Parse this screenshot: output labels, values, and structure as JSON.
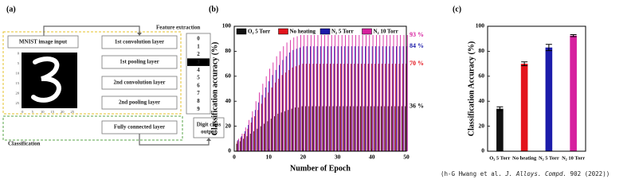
{
  "diagram": {
    "label": "(a)",
    "input": "MNIST image input",
    "feature_extraction": "Feature extraction",
    "layers": [
      "1st convolution layer",
      "1st pooling layer",
      "2nd convolution layer",
      "2nd pooling layer"
    ],
    "fully_connected": "Fully connected layer",
    "classification": "Classification",
    "output": [
      "Digit class",
      "output"
    ],
    "digits": [
      "0",
      "1",
      "2",
      "3",
      "4",
      "5",
      "6",
      "7",
      "8",
      "9"
    ],
    "image_ticks": [
      0,
      5,
      10,
      15,
      20,
      25
    ]
  },
  "chart_data": [
    {
      "type": "bar",
      "label": "(b)",
      "ylabel": "Classification accuracy (%)",
      "xlabel": "Number of Epoch",
      "legend": "top",
      "xlim": [
        0,
        50
      ],
      "xticks": [
        0,
        10,
        20,
        30,
        40,
        50
      ],
      "ylim": [
        0,
        100
      ],
      "yticks": [
        0,
        20,
        40,
        60,
        80,
        100
      ],
      "x": [
        1,
        2,
        3,
        4,
        5,
        6,
        7,
        8,
        9,
        10,
        11,
        12,
        13,
        14,
        15,
        16,
        17,
        18,
        19,
        20,
        21,
        22,
        23,
        24,
        25,
        26,
        27,
        28,
        29,
        30,
        31,
        32,
        33,
        34,
        35,
        36,
        37,
        38,
        39,
        40,
        41,
        42,
        43,
        44,
        45,
        46,
        47,
        48,
        49,
        50
      ],
      "series": [
        {
          "name": "O₂ 5 Torr",
          "color": "#111111",
          "end_label": "36 %",
          "values": [
            6,
            8,
            10,
            12,
            14,
            16,
            18,
            20,
            22,
            24,
            26,
            28,
            30,
            31,
            32,
            33,
            34,
            35,
            35,
            36,
            36,
            36,
            36,
            36,
            36,
            36,
            36,
            36,
            36,
            36,
            36,
            36,
            36,
            36,
            36,
            36,
            36,
            36,
            36,
            36,
            36,
            36,
            36,
            36,
            36,
            36,
            36,
            36,
            36,
            36
          ]
        },
        {
          "name": "No heating",
          "color": "#e3141c",
          "end_label": "70 %",
          "values": [
            8,
            11,
            14,
            18,
            23,
            28,
            33,
            38,
            43,
            47,
            51,
            55,
            58,
            61,
            63,
            65,
            67,
            68,
            69,
            70,
            70,
            70,
            70,
            70,
            70,
            70,
            70,
            70,
            70,
            70,
            70,
            70,
            70,
            70,
            70,
            70,
            70,
            70,
            70,
            70,
            70,
            70,
            70,
            70,
            70,
            70,
            70,
            70,
            70,
            70
          ]
        },
        {
          "name": "N₂ 5 Torr",
          "color": "#1c1caa",
          "end_label": "84 %",
          "values": [
            9,
            12,
            16,
            21,
            27,
            33,
            39,
            45,
            51,
            56,
            61,
            65,
            69,
            73,
            76,
            79,
            81,
            82,
            83,
            84,
            84,
            84,
            84,
            84,
            84,
            84,
            84,
            84,
            84,
            84,
            84,
            84,
            84,
            84,
            84,
            84,
            84,
            84,
            84,
            84,
            84,
            84,
            84,
            84,
            84,
            84,
            84,
            84,
            84,
            84
          ]
        },
        {
          "name": "N₂ 10 Torr",
          "color": "#d6209e",
          "end_label": "93 %",
          "values": [
            10,
            14,
            19,
            25,
            32,
            40,
            47,
            54,
            60,
            66,
            71,
            76,
            80,
            84,
            87,
            89,
            91,
            92,
            93,
            93,
            93,
            93,
            93,
            93,
            93,
            93,
            93,
            93,
            93,
            93,
            93,
            93,
            93,
            93,
            93,
            93,
            93,
            93,
            93,
            93,
            93,
            93,
            93,
            93,
            93,
            93,
            93,
            93,
            93,
            93
          ]
        }
      ]
    },
    {
      "type": "bar",
      "label": "(c)",
      "ylabel": "Classification Accuracy (%)",
      "ylim": [
        0,
        100
      ],
      "yticks": [
        0,
        20,
        40,
        60,
        80,
        100
      ],
      "categories": [
        "O₂ 5 Torr",
        "No heating",
        "N₂ 5 Torr",
        "N₂ 10 Torr"
      ],
      "values": [
        34,
        70,
        83,
        92.5
      ],
      "errors": [
        1.5,
        1.5,
        2.5,
        0.8
      ],
      "colors": [
        "#111111",
        "#e3141c",
        "#1c1caa",
        "#d6209e"
      ]
    }
  ],
  "citation": {
    "prefix": "(h-G Hwang et al. ",
    "journal": "J. Alloys. Compd.",
    "suffix": " 902 (2022))"
  }
}
